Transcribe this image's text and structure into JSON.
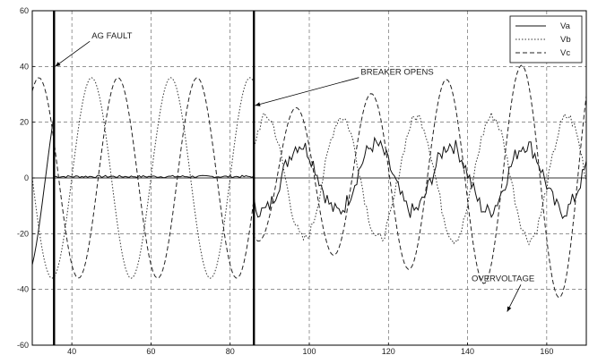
{
  "chart_data": {
    "type": "line",
    "title": "",
    "xlabel": "",
    "ylabel": "",
    "xlim": [
      30,
      170
    ],
    "ylim": [
      -60,
      60
    ],
    "grid": true,
    "legend_position": "top-right",
    "xticks": [
      40,
      60,
      80,
      100,
      120,
      140,
      160
    ],
    "yticks": [
      -60,
      -40,
      -20,
      0,
      20,
      40,
      60
    ],
    "sample_step": 0.5,
    "series": [
      {
        "name": "Va",
        "style": "solid",
        "description_values": "fault at 35.5, near zero until breaker opens at 86, then noisy growing oscillation",
        "segments": [
          {
            "x_start": 30,
            "x_end": 35.5,
            "kind": "sine",
            "amplitude": 36,
            "period": 20,
            "phase_deg": 120
          },
          {
            "x_start": 35.5,
            "x_end": 86,
            "kind": "flat",
            "value": 0.5
          },
          {
            "x_start": 86,
            "x_end": 170,
            "kind": "sine",
            "amplitude": 12,
            "period": 19,
            "phase_deg": 40,
            "noise": 3
          }
        ]
      },
      {
        "name": "Vb",
        "style": "dotted",
        "segments": [
          {
            "x_start": 30,
            "x_end": 86,
            "kind": "sine",
            "amplitude": 36,
            "period": 20,
            "phase_deg": 0
          },
          {
            "x_start": 86,
            "x_end": 170,
            "kind": "sine",
            "amplitude": 22,
            "period": 19,
            "phase_deg": 200,
            "noise": 2
          }
        ]
      },
      {
        "name": "Vc",
        "style": "dashed",
        "segments": [
          {
            "x_start": 30,
            "x_end": 86,
            "kind": "sine",
            "amplitude": 36,
            "period": 20,
            "phase_deg": 240
          },
          {
            "x_start": 86,
            "x_end": 170,
            "kind": "sine",
            "amplitude": 28,
            "period": 19,
            "phase_deg": 60,
            "growth": true
          }
        ]
      }
    ],
    "markers": [
      {
        "name": "fault-marker",
        "x": 35.5
      },
      {
        "name": "breaker-marker",
        "x": 86
      }
    ],
    "annotations": [
      {
        "name": "ag-fault-label",
        "text": "AG FAULT",
        "text_x": 45,
        "text_y": 50,
        "arrow_to": [
          35.8,
          40
        ]
      },
      {
        "name": "breaker-opens-label",
        "text": "BREAKER OPENS",
        "text_x": 113,
        "text_y": 37,
        "arrow_to": [
          86.3,
          26
        ]
      },
      {
        "name": "overvoltage-label",
        "text": "OVERVOLTAGE",
        "text_x": 141,
        "text_y": -37,
        "arrow_to": [
          150,
          -48
        ]
      }
    ]
  },
  "legend": {
    "items": [
      "Va",
      "Vb",
      "Vc"
    ]
  }
}
